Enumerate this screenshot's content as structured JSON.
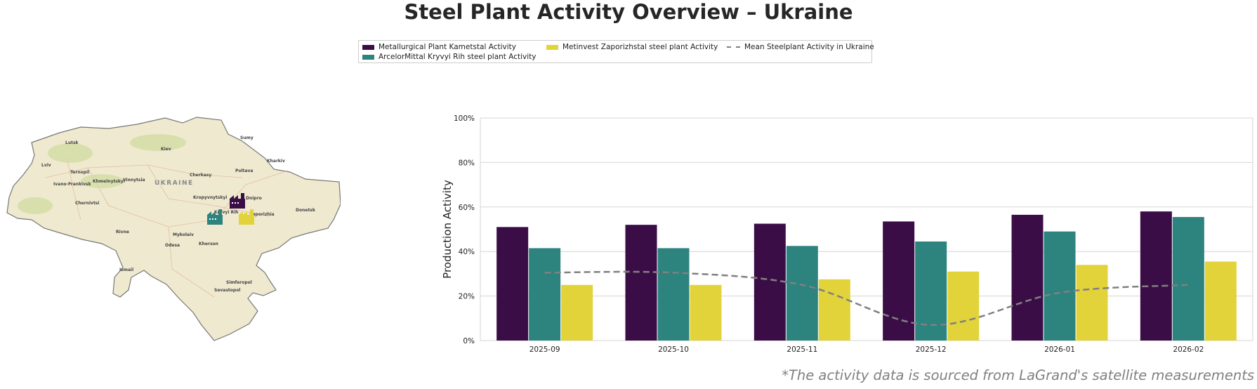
{
  "title": "Steel Plant Activity Overview – Ukraine",
  "footnote": "*The activity data is sourced from LaGrand's satellite measurements",
  "legend": {
    "kametstal": "Metallurgical Plant Kametstal Activity",
    "arcelor": "ArcelorMittal Kryvyi Rih steel plant Activity",
    "metinvest": "Metinvest Zaporizhstal steel plant Activity",
    "mean": "Mean Steelplant Activity in Ukraine"
  },
  "map": {
    "country_label": "UKRAINE",
    "cities": [
      "Lutsk",
      "Rivne",
      "Kiev",
      "Sumy",
      "Kharkiv",
      "Lviv",
      "Ternopil",
      "Khmelnytskyi",
      "Vinnytsia",
      "Ivano-Frankivsk",
      "Cherkasy",
      "Poltava",
      "Chernivtsi",
      "Kropyvnytskyi",
      "Dnipro",
      "Kryvyi Rih",
      "Zaporizhia",
      "Donetsk",
      "Odesa",
      "Mykolaiv",
      "Kherson",
      "Simferopol",
      "Sevastopol",
      "Izmail"
    ],
    "plant_icons": [
      "factory-icon-kametstal",
      "factory-icon-arcelormittal",
      "factory-icon-zaporizhstal"
    ]
  },
  "chart_data": {
    "type": "bar",
    "categories": [
      "2025-09",
      "2025-10",
      "2025-11",
      "2025-12",
      "2026-01",
      "2026-02"
    ],
    "series": [
      {
        "name": "Metallurgical Plant Kametstal Activity",
        "color": "#3b0d47",
        "values": [
          51,
          52,
          52.5,
          53.5,
          56.5,
          58
        ]
      },
      {
        "name": "ArcelorMittal Kryvyi Rih steel plant Activity",
        "color": "#2d837e",
        "values": [
          41.5,
          41.5,
          42.5,
          44.5,
          49,
          55.5
        ]
      },
      {
        "name": "Metinvest Zaporizhstal steel plant Activity",
        "color": "#e3d33a",
        "values": [
          25,
          25,
          27.5,
          31,
          34,
          35.5
        ]
      }
    ],
    "mean_line": {
      "name": "Mean Steelplant Activity in Ukraine",
      "color": "#808080",
      "values": [
        30.5,
        30.5,
        25,
        7,
        21.5,
        25
      ]
    },
    "ylabel": "Production Activity",
    "xlabel": "",
    "ylim": [
      0,
      100
    ],
    "yticks": [
      "0%",
      "20%",
      "40%",
      "60%",
      "80%",
      "100%"
    ],
    "ytick_values": [
      0,
      20,
      40,
      60,
      80,
      100
    ],
    "grid": true,
    "legend_placement": "top-center"
  }
}
